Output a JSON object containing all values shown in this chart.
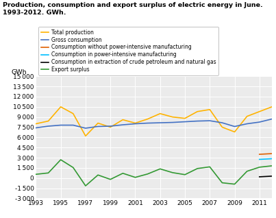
{
  "title_line1": "Production, consumption and export surplus of electric energy in June.",
  "title_line2": "1993-2012. GWh.",
  "years": [
    1993,
    1994,
    1995,
    1996,
    1997,
    1998,
    1999,
    2000,
    2001,
    2002,
    2003,
    2004,
    2005,
    2006,
    2007,
    2008,
    2009,
    2010,
    2011,
    2012
  ],
  "total_production": [
    8000,
    8400,
    10500,
    9500,
    6200,
    8100,
    7500,
    8600,
    8100,
    8700,
    9500,
    9000,
    8800,
    9800,
    10100,
    7500,
    6800,
    9100,
    9800,
    10500
  ],
  "gross_consumption": [
    7400,
    7650,
    7800,
    7800,
    7350,
    7600,
    7650,
    7850,
    8000,
    8100,
    8150,
    8200,
    8300,
    8400,
    8450,
    8150,
    7600,
    8000,
    8250,
    8700
  ],
  "consumption_without_power": [
    null,
    null,
    null,
    null,
    null,
    null,
    null,
    null,
    null,
    null,
    null,
    null,
    null,
    null,
    null,
    null,
    null,
    null,
    3500,
    3600
  ],
  "consumption_power_intensive": [
    null,
    null,
    null,
    null,
    null,
    null,
    null,
    null,
    null,
    null,
    null,
    null,
    null,
    null,
    null,
    null,
    null,
    null,
    2750,
    2850
  ],
  "consumption_extraction": [
    null,
    null,
    null,
    null,
    null,
    null,
    null,
    null,
    null,
    null,
    null,
    null,
    null,
    null,
    null,
    null,
    null,
    null,
    180,
    280
  ],
  "export_surplus": [
    550,
    750,
    2700,
    1550,
    -1150,
    450,
    -200,
    700,
    100,
    600,
    1350,
    800,
    500,
    1400,
    1650,
    -700,
    -900,
    1000,
    1600,
    1800
  ],
  "colors": {
    "total_production": "#FFB300",
    "gross_consumption": "#4472C4",
    "consumption_without_power": "#E06000",
    "consumption_power_intensive": "#00BFFF",
    "consumption_extraction": "#000000",
    "export_surplus": "#339933"
  },
  "ylim": [
    -3000,
    15000
  ],
  "yticks": [
    -3000,
    -1500,
    0,
    1500,
    3000,
    4500,
    6000,
    7500,
    9000,
    10500,
    12000,
    13500,
    15000
  ],
  "ylabel": "GWh",
  "bg_color": "#ebebeb",
  "legend_labels": [
    "Total production",
    "Gross consumption",
    "Consumption without power-intensive manufacturing",
    "Consumption in power-intensive manufacturing",
    "Consumption in extraction of crude petroleum and natural gas",
    "Export surplus"
  ]
}
